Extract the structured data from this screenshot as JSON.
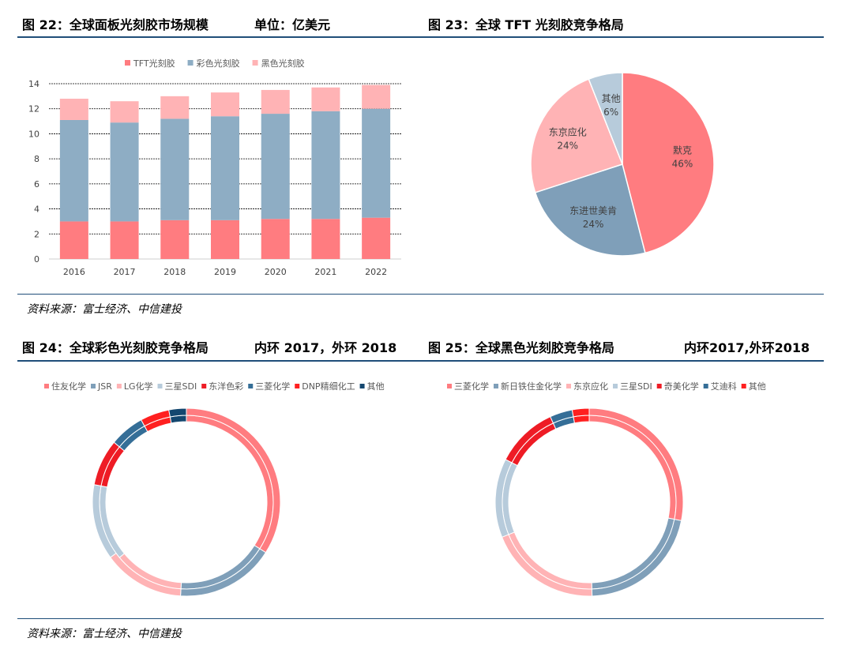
{
  "header_top": {
    "left_title": "图 22：全球面板光刻胶市场规模",
    "left_unit": "单位：亿美元",
    "right_title": "图 23：全球 TFT 光刻胶竞争格局"
  },
  "source_top": "资料来源：富士经济、中信建投",
  "header_bottom": {
    "left_title": "图 24：全球彩色光刻胶竞争格局",
    "left_note": "内环 2017，外环 2018",
    "right_title": "图 25：全球黑色光刻胶竞争格局",
    "right_note": "内环2017,外环2018"
  },
  "source_bottom": "资料来源：富士经济、中信建投",
  "chart_data": [
    {
      "type": "bar",
      "stacked": true,
      "categories": [
        "2016",
        "2017",
        "2018",
        "2019",
        "2020",
        "2021",
        "2022"
      ],
      "series": [
        {
          "name": "TFT光刻胶",
          "color": "#ff7c80",
          "values": [
            3.0,
            3.0,
            3.1,
            3.1,
            3.2,
            3.2,
            3.3
          ]
        },
        {
          "name": "彩色光刻胶",
          "color": "#8eadc4",
          "values": [
            8.1,
            7.9,
            8.1,
            8.3,
            8.4,
            8.6,
            8.7
          ]
        },
        {
          "name": "黑色光刻胶",
          "color": "#ffb3b5",
          "values": [
            1.7,
            1.7,
            1.8,
            1.9,
            1.9,
            1.9,
            1.9
          ]
        }
      ],
      "yticks": [
        "0",
        "2",
        "4",
        "6",
        "8",
        "10",
        "12",
        "14"
      ],
      "ylim": [
        0,
        14
      ],
      "grid": true,
      "legend": "top"
    },
    {
      "type": "pie",
      "slices": [
        {
          "label": "默克",
          "pct_label": "46%",
          "value": 46,
          "color": "#ff7c80"
        },
        {
          "label": "东进世美肯",
          "pct_label": "24%",
          "value": 24,
          "color": "#7f9fb9"
        },
        {
          "label": "东京应化",
          "pct_label": "24%",
          "value": 24,
          "color": "#ffb3b5"
        },
        {
          "label": "其他",
          "pct_label": "6%",
          "value": 6,
          "color": "#b7cbdb"
        }
      ]
    },
    {
      "type": "donut",
      "rings": "内环 2017，外环 2018",
      "legend": "top",
      "series": [
        {
          "name": "住友化学",
          "color": "#ff7c80"
        },
        {
          "name": "JSR",
          "color": "#7f9fb9"
        },
        {
          "name": "LG化学",
          "color": "#ffb3b5"
        },
        {
          "name": "三星SDI",
          "color": "#b7cbdb"
        },
        {
          "name": "东洋色彩",
          "color": "#ee1c25"
        },
        {
          "name": "三菱化学",
          "color": "#356e97"
        },
        {
          "name": "DNP精细化工",
          "color": "#ff2020"
        },
        {
          "name": "其他",
          "color": "#14476f"
        }
      ],
      "inner_2017": [
        34,
        17,
        13,
        14,
        8,
        6,
        5,
        3
      ],
      "outer_2018": [
        34,
        17,
        14,
        13,
        8,
        6,
        5,
        3
      ]
    },
    {
      "type": "donut",
      "rings": "内环2017,外环2018",
      "legend": "top",
      "series": [
        {
          "name": "三菱化学",
          "color": "#ff7c80"
        },
        {
          "name": "新日铁住金化学",
          "color": "#7f9fb9"
        },
        {
          "name": "东京应化",
          "color": "#ffb3b5"
        },
        {
          "name": "三星SDI",
          "color": "#b7cbdb"
        },
        {
          "name": "奇美化学",
          "color": "#ee1c25"
        },
        {
          "name": "艾迪科",
          "color": "#356e97"
        },
        {
          "name": "其他",
          "color": "#ff2020"
        }
      ],
      "inner_2017": [
        29,
        22,
        20,
        14,
        11,
        4,
        3
      ],
      "outer_2018": [
        29,
        22,
        20,
        14,
        11,
        4,
        3
      ]
    }
  ]
}
